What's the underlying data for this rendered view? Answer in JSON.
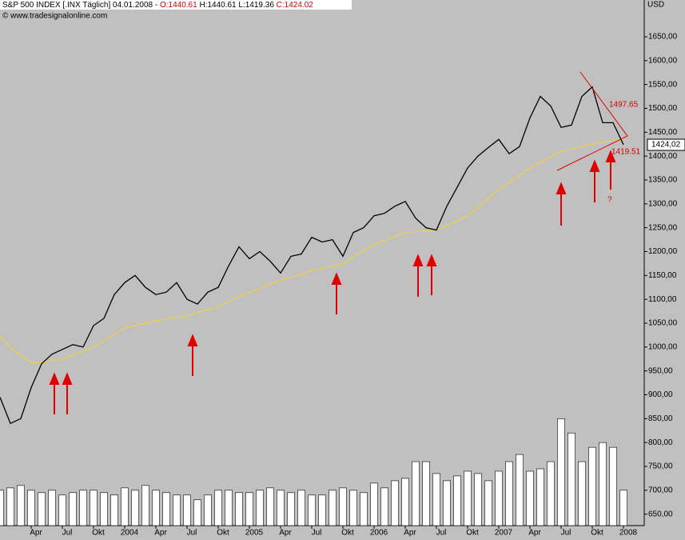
{
  "header": {
    "instrument": "S&P 500 INDEX [.INX  Täglich] 04.01.2008 -",
    "open": "O:1440.61",
    "high_low": "H:1440.61 L:1419.36",
    "close": "C:1424.02",
    "source": "© www.tradesignalonline.com",
    "currency": "USD",
    "last_price": "1424,02"
  },
  "chart_data": {
    "type": "line",
    "x": [
      "2003-01",
      "2003-02",
      "2003-03",
      "2003-04",
      "2003-05",
      "2003-06",
      "2003-07",
      "2003-08",
      "2003-09",
      "2003-10",
      "2003-11",
      "2003-12",
      "2004-01",
      "2004-02",
      "2004-03",
      "2004-04",
      "2004-05",
      "2004-06",
      "2004-07",
      "2004-08",
      "2004-09",
      "2004-10",
      "2004-11",
      "2004-12",
      "2005-01",
      "2005-02",
      "2005-03",
      "2005-04",
      "2005-05",
      "2005-06",
      "2005-07",
      "2005-08",
      "2005-09",
      "2005-10",
      "2005-11",
      "2005-12",
      "2006-01",
      "2006-02",
      "2006-03",
      "2006-04",
      "2006-05",
      "2006-06",
      "2006-07",
      "2006-08",
      "2006-09",
      "2006-10",
      "2006-11",
      "2006-12",
      "2007-01",
      "2007-02",
      "2007-03",
      "2007-04",
      "2007-05",
      "2007-06",
      "2007-07",
      "2007-08",
      "2007-09",
      "2007-10",
      "2007-11",
      "2007-12",
      "2008-01"
    ],
    "series": [
      {
        "color": "#000000",
        "values": [
          895,
          840,
          850,
          915,
          965,
          985,
          995,
          1005,
          1000,
          1045,
          1060,
          1110,
          1135,
          1150,
          1125,
          1110,
          1115,
          1135,
          1100,
          1090,
          1115,
          1125,
          1170,
          1210,
          1185,
          1200,
          1180,
          1155,
          1190,
          1195,
          1230,
          1220,
          1225,
          1190,
          1240,
          1250,
          1275,
          1280,
          1295,
          1305,
          1270,
          1250,
          1245,
          1295,
          1335,
          1375,
          1400,
          1418,
          1435,
          1405,
          1420,
          1480,
          1525,
          1505,
          1460,
          1465,
          1525,
          1545,
          1470,
          1470,
          1424
        ]
      },
      {
        "color": "#f0d040",
        "values": [
          1023,
          1000,
          982,
          968,
          968,
          971,
          975,
          983,
          991,
          1000,
          1013,
          1027,
          1040,
          1045,
          1050,
          1055,
          1058,
          1062,
          1065,
          1072,
          1078,
          1085,
          1095,
          1105,
          1115,
          1123,
          1132,
          1140,
          1147,
          1153,
          1160,
          1165,
          1170,
          1175,
          1188,
          1202,
          1215,
          1223,
          1232,
          1240,
          1242,
          1243,
          1245,
          1255,
          1265,
          1275,
          1293,
          1312,
          1330,
          1345,
          1360,
          1375,
          1387,
          1398,
          1410,
          1415,
          1420,
          1425,
          1429,
          1432,
          1436
        ]
      },
      {
        "type": "bar",
        "color": "#ffffff",
        "values": [
          700,
          705,
          710,
          700,
          695,
          700,
          690,
          695,
          700,
          700,
          695,
          690,
          705,
          700,
          710,
          700,
          695,
          690,
          690,
          680,
          690,
          700,
          700,
          695,
          695,
          700,
          705,
          700,
          695,
          700,
          690,
          690,
          700,
          705,
          700,
          695,
          715,
          705,
          720,
          725,
          760,
          760,
          735,
          720,
          730,
          740,
          735,
          720,
          740,
          760,
          775,
          740,
          745,
          760,
          850,
          820,
          760,
          790,
          800,
          790,
          700
        ]
      }
    ],
    "xlim": [
      "2003-01",
      "2008-03"
    ],
    "xticks": [
      {
        "value": "2003-04",
        "label": "Apr"
      },
      {
        "value": "2003-07",
        "label": "Jul"
      },
      {
        "value": "2003-10",
        "label": "Okt"
      },
      {
        "value": "2004-01",
        "label": "2004"
      },
      {
        "value": "2004-04",
        "label": "Apr"
      },
      {
        "value": "2004-07",
        "label": "Jul"
      },
      {
        "value": "2004-10",
        "label": "Okt"
      },
      {
        "value": "2005-01",
        "label": "2005"
      },
      {
        "value": "2005-04",
        "label": "Apr"
      },
      {
        "value": "2005-07",
        "label": "Jul"
      },
      {
        "value": "2005-10",
        "label": "Okt"
      },
      {
        "value": "2006-01",
        "label": "2006"
      },
      {
        "value": "2006-04",
        "label": "Apr"
      },
      {
        "value": "2006-07",
        "label": "Jul"
      },
      {
        "value": "2006-10",
        "label": "Okt"
      },
      {
        "value": "2007-01",
        "label": "2007"
      },
      {
        "value": "2007-04",
        "label": "Apr"
      },
      {
        "value": "2007-07",
        "label": "Jul"
      },
      {
        "value": "2007-10",
        "label": "Okt"
      },
      {
        "value": "2008-01",
        "label": "2008"
      }
    ],
    "ylim": [
      626,
      1727
    ],
    "yticks": [
      {
        "value": 650,
        "label": "650,00"
      },
      {
        "value": 700,
        "label": "700,00"
      },
      {
        "value": 750,
        "label": "750,00"
      },
      {
        "value": 800,
        "label": "800,00"
      },
      {
        "value": 850,
        "label": "850,00"
      },
      {
        "value": 900,
        "label": "900,00"
      },
      {
        "value": 950,
        "label": "950,00"
      },
      {
        "value": 1000,
        "label": "1000,00"
      },
      {
        "value": 1050,
        "label": "1050,00"
      },
      {
        "value": 1100,
        "label": "1100,00"
      },
      {
        "value": 1150,
        "label": "1150,00"
      },
      {
        "value": 1200,
        "label": "1200,00"
      },
      {
        "value": 1250,
        "label": "1250,00"
      },
      {
        "value": 1300,
        "label": "1300,00"
      },
      {
        "value": 1350,
        "label": "1350,00"
      },
      {
        "value": 1400,
        "label": "1400,00"
      },
      {
        "value": 1450,
        "label": "1450,00"
      },
      {
        "value": 1500,
        "label": "1500,00"
      },
      {
        "value": 1550,
        "label": "1550,00"
      },
      {
        "value": 1600,
        "label": "1600,00"
      },
      {
        "value": 1650,
        "label": "1650,00"
      }
    ],
    "annotations": [
      "1497.65",
      "1419.51",
      "?"
    ]
  }
}
